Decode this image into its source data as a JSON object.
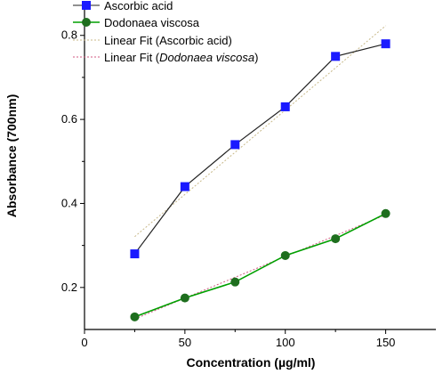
{
  "chart_data": {
    "type": "line",
    "xlabel": "Concentration (µg/ml)",
    "ylabel": "Absorbance (700nm)",
    "xlim": [
      0,
      175
    ],
    "ylim": [
      0.1,
      0.88
    ],
    "x_ticks": [
      0,
      50,
      100,
      150
    ],
    "y_ticks": [
      0.2,
      0.4,
      0.6,
      0.8
    ],
    "x_tick_labels": [
      "0",
      "50",
      "100",
      "150"
    ],
    "y_tick_labels": [
      "0.2",
      "0.4",
      "0.6",
      "0.8"
    ],
    "x": [
      25,
      50,
      75,
      100,
      125,
      150
    ],
    "grid": false,
    "legend_position": "top-left",
    "series": [
      {
        "name": "Ascorbic acid",
        "values": [
          0.28,
          0.44,
          0.54,
          0.63,
          0.75,
          0.78
        ],
        "color": "#222222",
        "marker": "square",
        "marker_color": "#1a1aff"
      },
      {
        "name": "Dodonaea viscosa",
        "values": [
          0.13,
          0.175,
          0.213,
          0.276,
          0.316,
          0.376
        ],
        "color": "#00a000",
        "marker": "circle",
        "marker_color": "#1e6e1e"
      }
    ],
    "fits": [
      {
        "name_prefix": "Linear Fit (",
        "name_core": "Ascorbic acid",
        "name_suffix": ")",
        "italic": false,
        "x_range": [
          25,
          150
        ],
        "y_range": [
          0.321,
          0.823
        ],
        "color": "#c8b98a"
      },
      {
        "name_prefix": "Linear Fit (",
        "name_core": "Dodonaea viscosa",
        "name_suffix": ")",
        "italic": true,
        "x_range": [
          25,
          150
        ],
        "y_range": [
          0.125,
          0.373
        ],
        "color": "#d05a80"
      }
    ]
  }
}
